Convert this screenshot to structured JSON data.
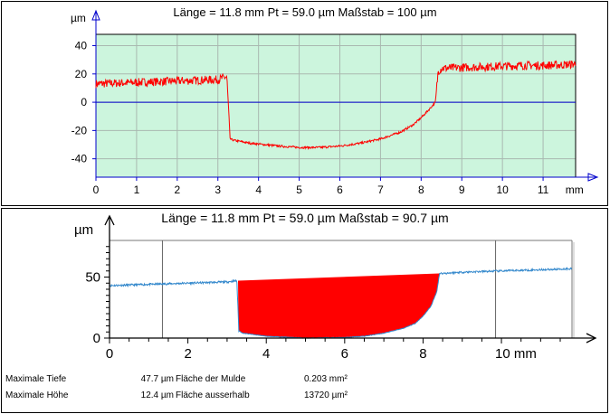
{
  "chart_data": [
    {
      "type": "line",
      "title": "Länge = 11.8 mm  Pt = 59.0 µm  Maßstab = 100 µm",
      "ylabel": "µm",
      "xlabel": "mm",
      "xlim": [
        0,
        11.8
      ],
      "ylim": [
        -53,
        48
      ],
      "x_ticks": [
        0,
        1,
        2,
        3,
        4,
        5,
        6,
        7,
        8,
        9,
        10,
        11
      ],
      "y_ticks": [
        40,
        20,
        0,
        -20,
        -40
      ],
      "grid": true,
      "background": "#ccf5dd",
      "color": "#ff0000",
      "series": [
        {
          "x": [
            0,
            0.5,
            1.0,
            1.5,
            2.0,
            2.5,
            3.0,
            3.22,
            3.3,
            3.4,
            3.8,
            4.5,
            5.0,
            5.5,
            6.0,
            6.5,
            7.0,
            7.5,
            7.8,
            8.0,
            8.2,
            8.35,
            8.42,
            8.5,
            9.0,
            9.5,
            10.0,
            10.5,
            11.0,
            11.5,
            11.8
          ],
          "y": [
            13,
            13.5,
            14,
            14.5,
            15,
            15.5,
            16,
            18,
            -26,
            -27,
            -29,
            -31,
            -32,
            -32,
            -31,
            -29,
            -26,
            -21,
            -16,
            -11,
            -5,
            0,
            22,
            24,
            24.5,
            25,
            25.5,
            26,
            26,
            26.5,
            27
          ],
          "noise": 3
        }
      ]
    },
    {
      "type": "area",
      "title": "Länge = 11.8 mm  Pt = 59.0 µm  Maßstab = 90.7 µm",
      "ylabel": "µm",
      "xlabel": "mm",
      "xlim": [
        0,
        11.8
      ],
      "ylim": [
        0,
        80
      ],
      "x_ticks": [
        0,
        2,
        4,
        6,
        8,
        10
      ],
      "x_tick_labels": [
        "0",
        "2",
        "4",
        "6",
        "8",
        "10 mm"
      ],
      "y_ticks": [
        50,
        0
      ],
      "vlines": [
        1.35,
        9.85
      ],
      "line_color": "#3388cc",
      "fill_color": "#ff0000",
      "fill_level": 47,
      "series": [
        {
          "x": [
            0,
            1,
            2,
            3,
            3.25,
            3.3,
            3.4,
            4.0,
            5.0,
            6.0,
            6.5,
            7.0,
            7.5,
            7.8,
            8.0,
            8.2,
            8.35,
            8.42,
            8.5,
            9,
            10,
            11,
            11.5,
            11.8
          ],
          "y": [
            43,
            44,
            45,
            46,
            47,
            6,
            4,
            1.5,
            0,
            0.5,
            1.5,
            4,
            8,
            12,
            18,
            26,
            38,
            53,
            53,
            54,
            55,
            56,
            56.5,
            57
          ],
          "noise": 0.8
        }
      ]
    }
  ],
  "stats": [
    {
      "label": "Maximale Tiefe",
      "value": "47.7 µm",
      "label2": "Fläche der Mulde",
      "value2": "0.203 mm²"
    },
    {
      "label": "Maximale Höhe",
      "value": "12.4 µm",
      "label2": "Fläche ausserhalb",
      "value2": "13720 µm²"
    }
  ]
}
